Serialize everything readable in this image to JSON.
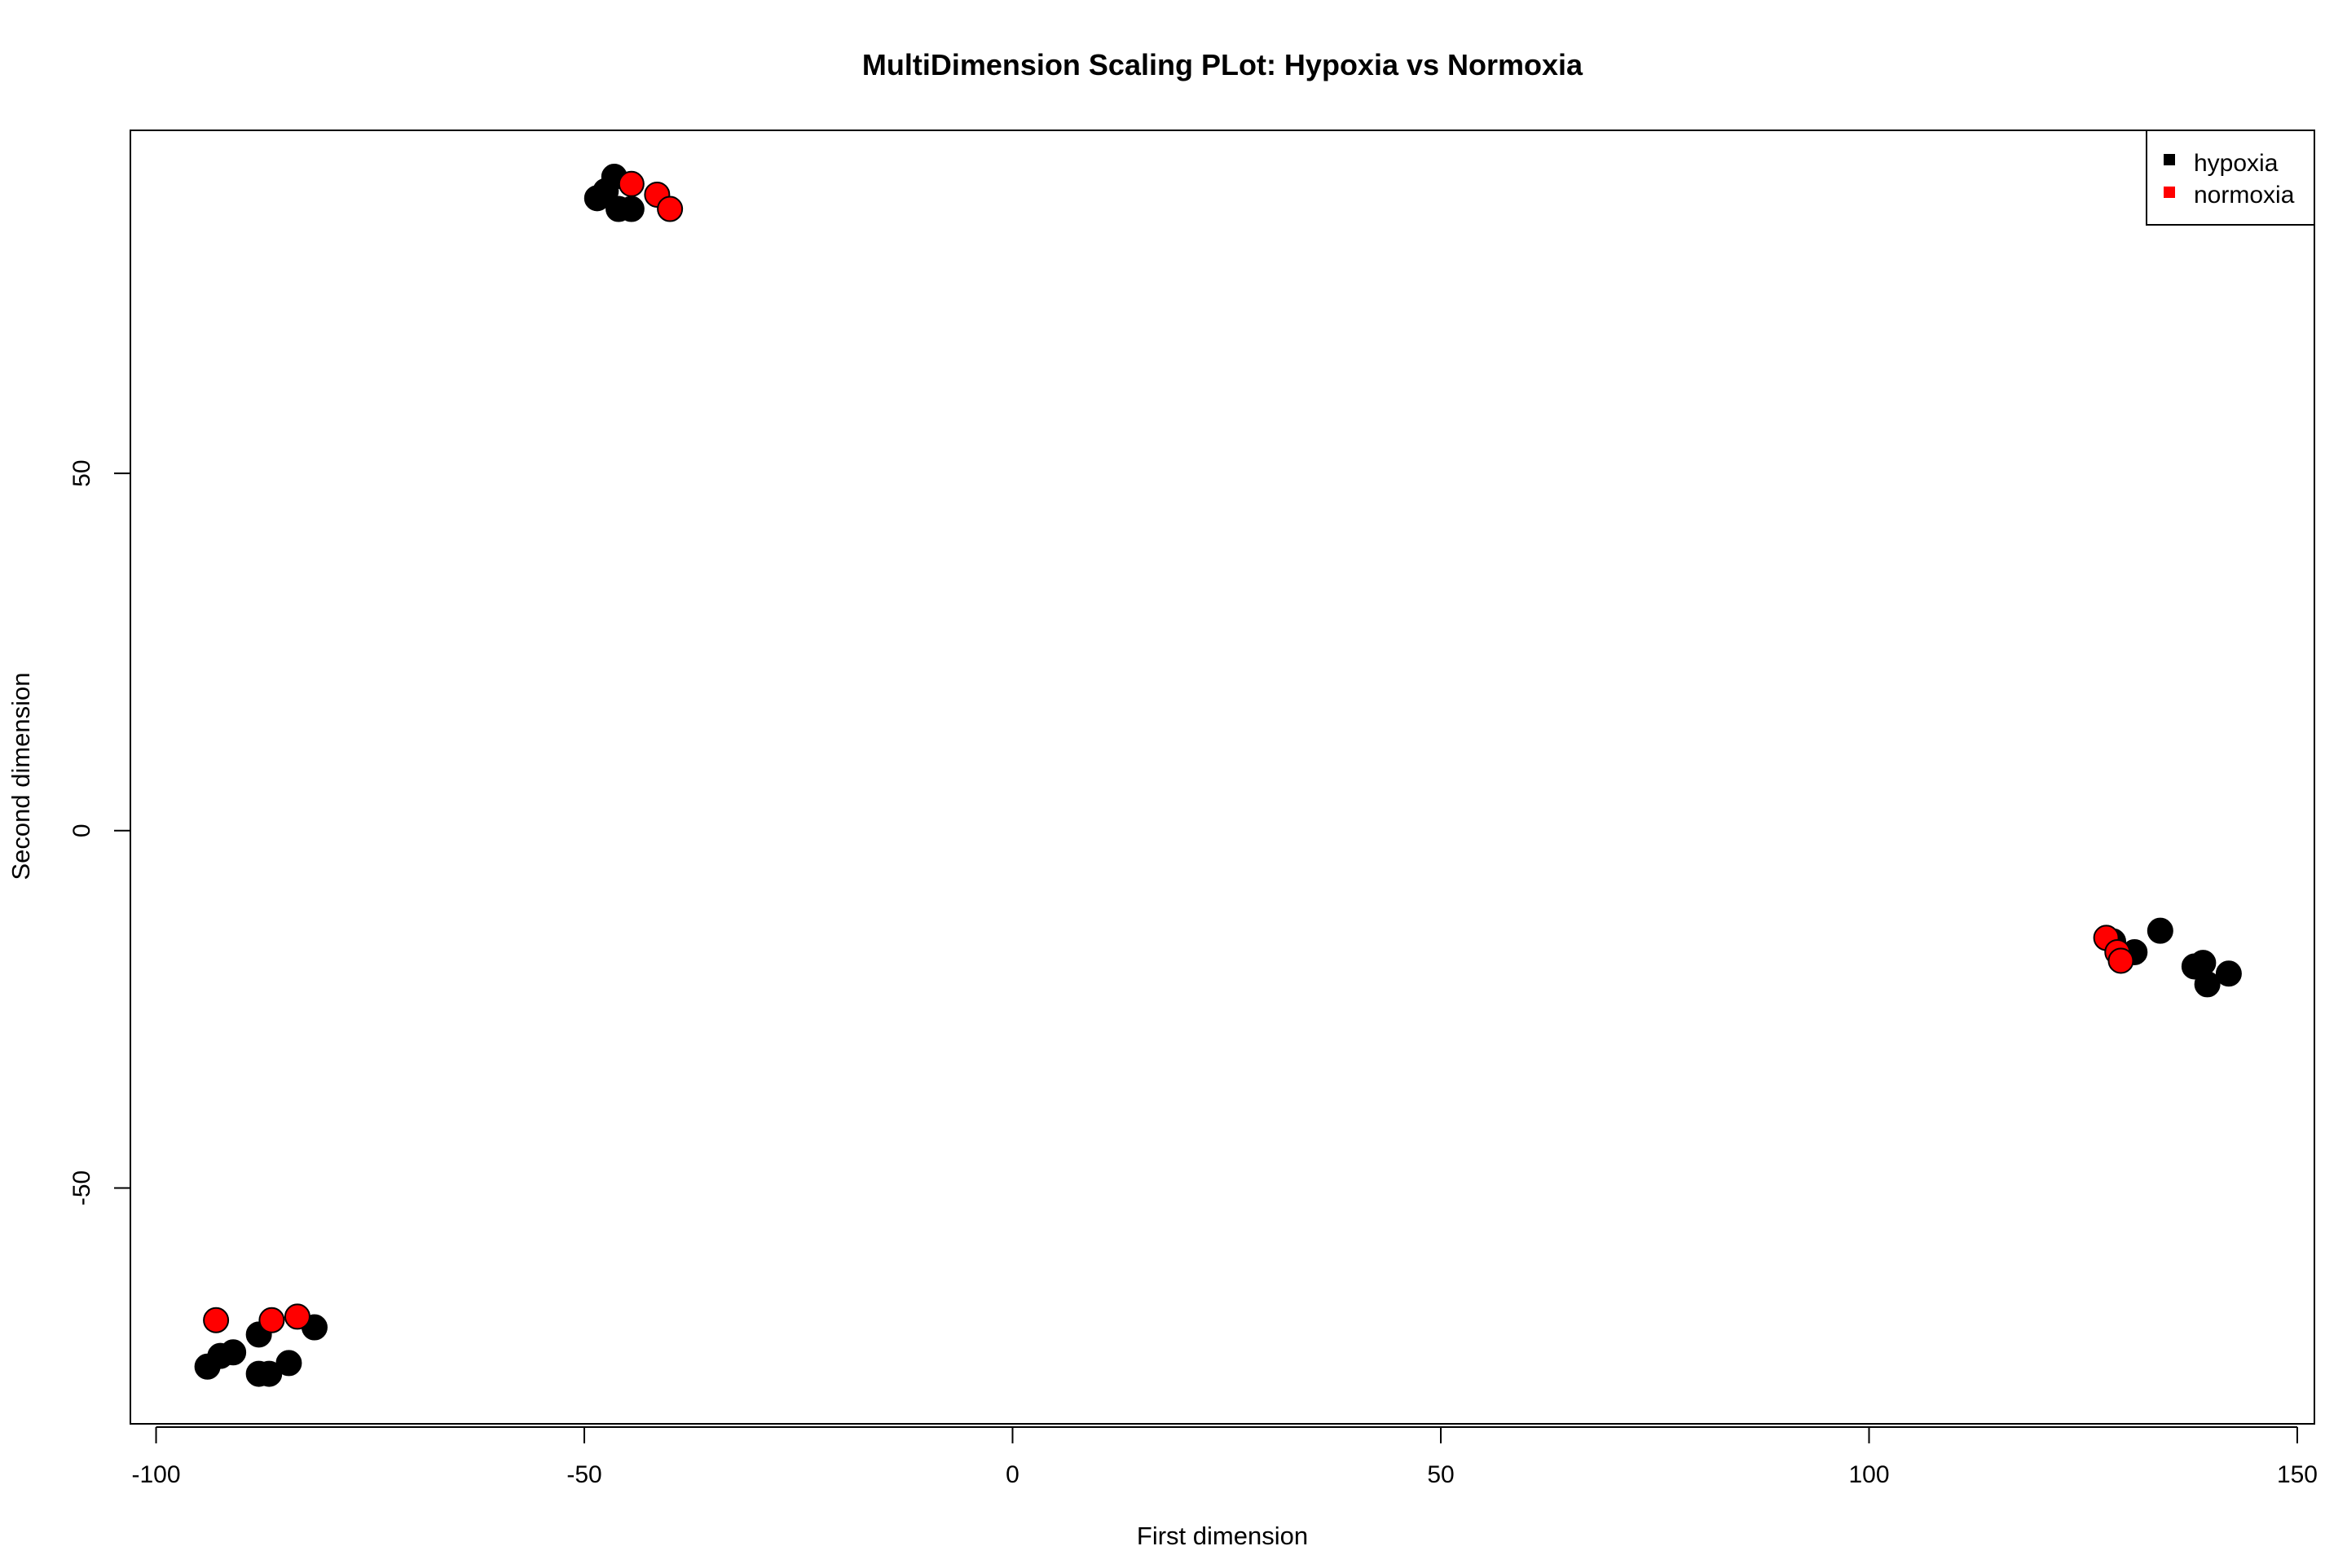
{
  "chart_data": {
    "type": "scatter",
    "title": "MultiDimension Scaling PLot: Hypoxia vs Normoxia",
    "xlabel": "First dimension",
    "ylabel": "Second dimension",
    "xlim": [
      -103,
      152
    ],
    "ylim": [
      -83,
      98
    ],
    "xticks": [
      -100,
      -50,
      0,
      50,
      100,
      150
    ],
    "xtick_labels": [
      "-100",
      "-50",
      "0",
      "50",
      "100",
      "150"
    ],
    "yticks": [
      -50,
      0,
      50
    ],
    "ytick_labels": [
      "-50",
      "0",
      "50"
    ],
    "grid": false,
    "legend_position": "top-right",
    "series": [
      {
        "name": "hypoxia",
        "color": "#000000",
        "points": [
          [
            -46.5,
            91.5
          ],
          [
            -47.5,
            89.5
          ],
          [
            -48.5,
            88.5
          ],
          [
            -46.0,
            87.0
          ],
          [
            -44.5,
            87.0
          ],
          [
            -94.0,
            -75.0
          ],
          [
            -92.5,
            -73.5
          ],
          [
            -91.0,
            -73.0
          ],
          [
            -88.0,
            -70.5
          ],
          [
            -88.0,
            -76.0
          ],
          [
            -86.8,
            -76.0
          ],
          [
            -84.5,
            -74.5
          ],
          [
            -81.5,
            -69.5
          ],
          [
            128.5,
            -15.5
          ],
          [
            131.0,
            -17.0
          ],
          [
            134.0,
            -14.0
          ],
          [
            138.0,
            -19.0
          ],
          [
            139.0,
            -18.5
          ],
          [
            139.5,
            -21.5
          ],
          [
            142.0,
            -20.0
          ]
        ]
      },
      {
        "name": "normoxia",
        "color": "#ff0000",
        "points": [
          [
            -44.5,
            90.5
          ],
          [
            -41.5,
            89.0
          ],
          [
            -40.0,
            87.0
          ],
          [
            -93.0,
            -68.5
          ],
          [
            -86.5,
            -68.5
          ],
          [
            -83.5,
            -68.0
          ],
          [
            127.7,
            -15.0
          ],
          [
            129.0,
            -17.0
          ],
          [
            129.4,
            -18.2
          ]
        ]
      }
    ]
  }
}
